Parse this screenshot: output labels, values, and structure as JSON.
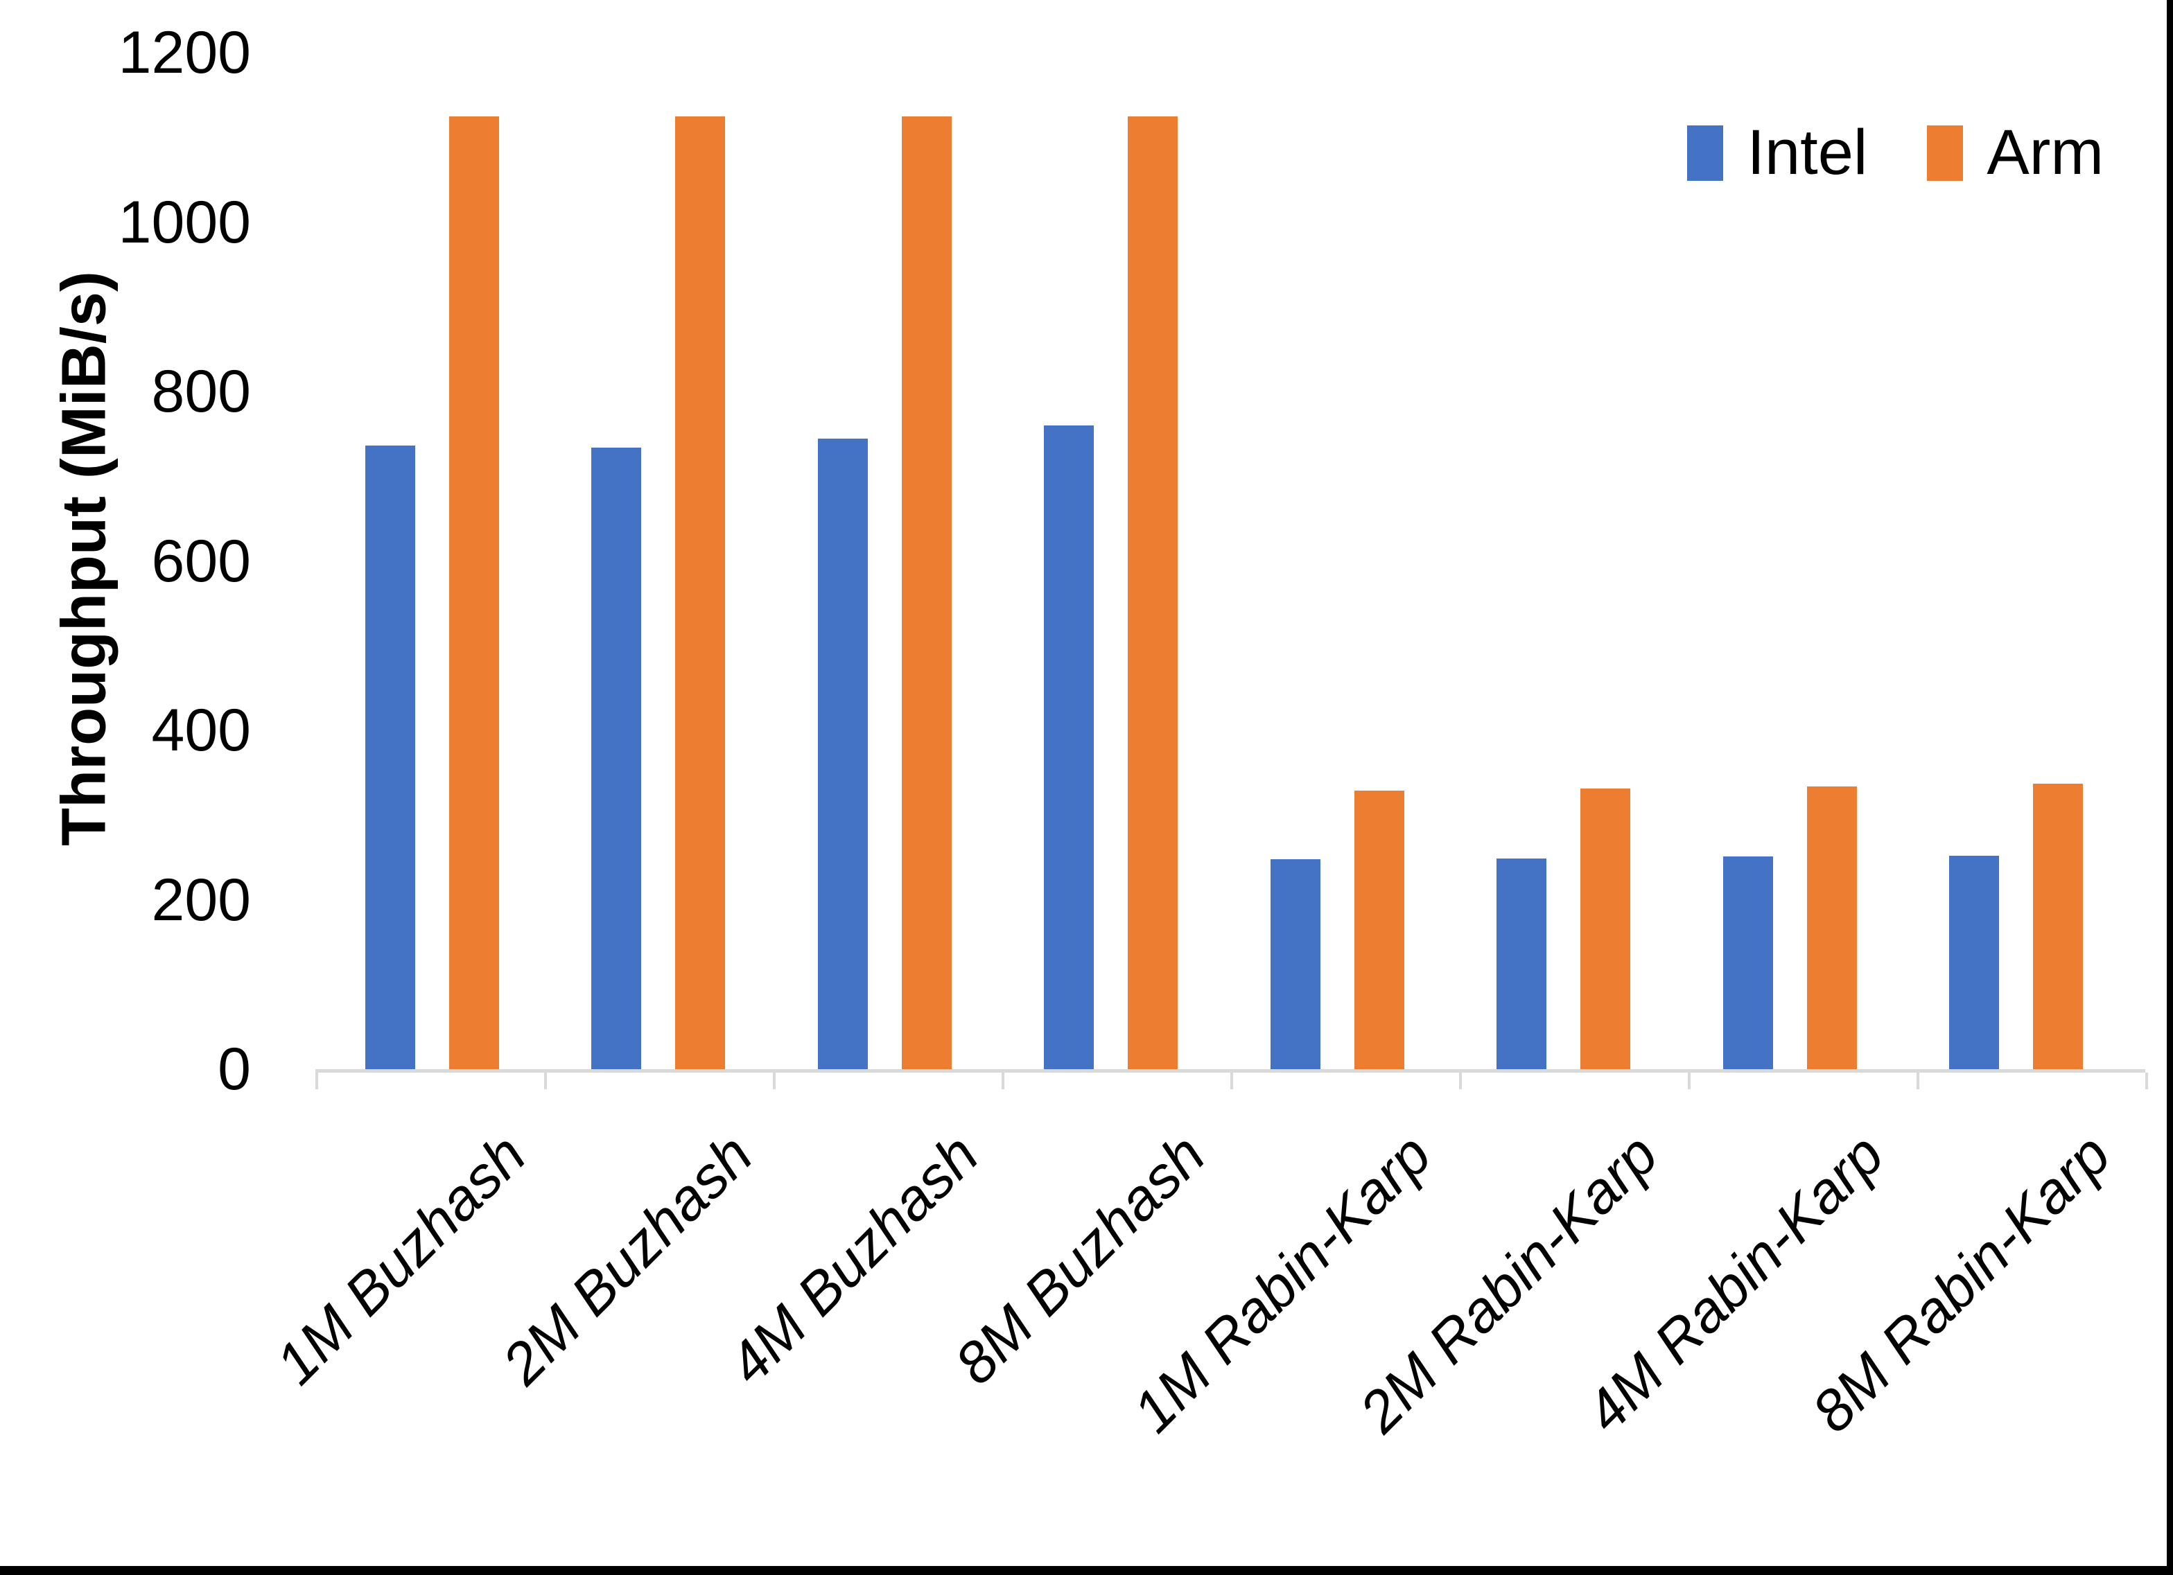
{
  "chart_data": {
    "type": "bar",
    "title": "",
    "xlabel": "",
    "ylabel": "Throughput (MiB/s)",
    "ylim": [
      0,
      1200
    ],
    "yticks": [
      0,
      200,
      400,
      600,
      800,
      1000,
      1200
    ],
    "grid": false,
    "legend_position": "top-right",
    "categories": [
      "1M Buzhash",
      "2M Buzhash",
      "4M Buzhash",
      "8M Buzhash",
      "1M Rabin-Karp",
      "2M Rabin-Karp",
      "4M Rabin-Karp",
      "8M Rabin-Karp"
    ],
    "series": [
      {
        "name": "Intel",
        "color": "#4472C4",
        "values": [
          736,
          734,
          744,
          760,
          248,
          249,
          251,
          252
        ]
      },
      {
        "name": "Arm",
        "color": "#ED7D31",
        "values": [
          1125,
          1125,
          1125,
          1125,
          329,
          331,
          334,
          337
        ]
      }
    ]
  },
  "legend": {
    "items": [
      {
        "label": "Intel",
        "color": "#4472C4"
      },
      {
        "label": "Arm",
        "color": "#ED7D31"
      }
    ]
  },
  "axis": {
    "y_title": "Throughput (MiB/s)",
    "line_color": "#D9D9D9",
    "text_color": "#000000"
  }
}
